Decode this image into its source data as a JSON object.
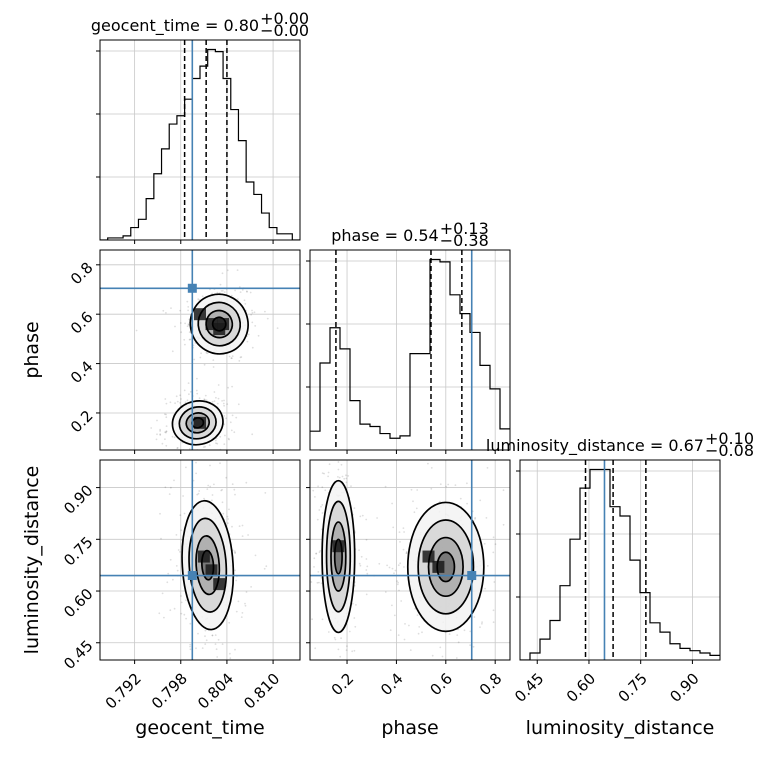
{
  "chart_data": {
    "type": "corner",
    "parameters": [
      "geocent_time",
      "phase",
      "luminosity_distance"
    ],
    "truths": {
      "geocent_time": 0.7995,
      "phase": 0.705,
      "luminosity_distance": 0.645
    },
    "colors": {
      "truth": "#4682b4",
      "contour": "#000000",
      "histogram": "#000000",
      "grid": "#c8c8c8"
    },
    "diagonal": [
      {
        "parameter": "geocent_time",
        "title": "geocent_time = 0.80",
        "title_plus": "+0.00",
        "title_minus": "−0.00",
        "range": [
          0.7875,
          0.8135
        ],
        "quantiles": [
          0.7985,
          0.8013,
          0.804
        ],
        "bin_edges": [
          0.7875,
          0.7885,
          0.7895,
          0.7905,
          0.7915,
          0.7925,
          0.7935,
          0.7945,
          0.7955,
          0.7965,
          0.7975,
          0.7985,
          0.7995,
          0.8005,
          0.8015,
          0.8025,
          0.8035,
          0.8045,
          0.8055,
          0.8065,
          0.8075,
          0.8085,
          0.8095,
          0.8105,
          0.8115,
          0.8125,
          0.8135
        ],
        "counts": [
          0,
          1,
          1,
          2,
          6,
          10,
          20,
          32,
          44,
          56,
          60,
          68,
          78,
          84,
          92,
          91,
          78,
          63,
          48,
          28,
          22,
          13,
          6,
          3,
          3,
          0
        ]
      },
      {
        "parameter": "phase",
        "title": "phase = 0.54",
        "title_plus": "+0.13",
        "title_minus": "−0.38",
        "range": [
          0.05,
          0.86
        ],
        "quantiles": [
          0.155,
          0.54,
          0.665
        ],
        "bin_edges": [
          0.05,
          0.0905,
          0.131,
          0.1715,
          0.212,
          0.2525,
          0.293,
          0.3335,
          0.374,
          0.4145,
          0.455,
          0.4955,
          0.536,
          0.5765,
          0.617,
          0.6575,
          0.698,
          0.7385,
          0.779,
          0.8195,
          0.86
        ],
        "counts": [
          8,
          37,
          52,
          43,
          21,
          11,
          10,
          7,
          5,
          6,
          41,
          41,
          81,
          80,
          66,
          58,
          50,
          36,
          26,
          9
        ]
      },
      {
        "parameter": "luminosity_distance",
        "title": "luminosity_distance = 0.67",
        "title_plus": "+0.10",
        "title_minus": "−0.08",
        "range": [
          0.4,
          0.98
        ],
        "quantiles": [
          0.59,
          0.67,
          0.765
        ],
        "bin_edges": [
          0.4,
          0.429,
          0.458,
          0.487,
          0.516,
          0.545,
          0.574,
          0.603,
          0.632,
          0.661,
          0.69,
          0.719,
          0.748,
          0.777,
          0.806,
          0.835,
          0.864,
          0.893,
          0.922,
          0.951,
          0.98
        ],
        "counts": [
          0,
          3,
          9,
          17,
          32,
          52,
          74,
          82,
          82,
          66,
          62,
          43,
          29,
          16,
          12,
          7,
          5,
          4,
          3,
          2
        ]
      }
    ],
    "contour_panels": [
      {
        "x": "geocent_time",
        "y": "phase",
        "modes": [
          {
            "cx": 0.803,
            "cy": 0.56,
            "sx": 0.0017,
            "sy": 0.055,
            "rot": 0.45,
            "dense": [
              [
                0.802,
                0.56
              ],
              [
                0.8035,
                0.56
              ],
              [
                0.8005,
                0.6
              ],
              [
                0.803,
                0.54
              ]
            ]
          },
          {
            "cx": 0.8002,
            "cy": 0.16,
            "sx": 0.0015,
            "sy": 0.04,
            "rot": 0.35,
            "dense": [
              [
                0.8005,
                0.16
              ]
            ]
          }
        ]
      },
      {
        "x": "geocent_time",
        "y": "luminosity_distance",
        "modes": [
          {
            "cx": 0.8015,
            "cy": 0.675,
            "sx": 0.0015,
            "sy": 0.085,
            "rot": 0.1,
            "dense": [
              [
                0.802,
                0.66
              ],
              [
                0.803,
                0.62
              ],
              [
                0.801,
                0.7
              ]
            ]
          }
        ]
      },
      {
        "x": "phase",
        "y": "luminosity_distance",
        "modes": [
          {
            "cx": 0.165,
            "cy": 0.7,
            "sx": 0.03,
            "sy": 0.1,
            "rot": 0.0,
            "dense": [
              [
                0.165,
                0.73
              ]
            ]
          },
          {
            "cx": 0.6,
            "cy": 0.67,
            "sx": 0.07,
            "sy": 0.085,
            "rot": 0.0,
            "dense": [
              [
                0.57,
                0.67
              ],
              [
                0.53,
                0.7
              ]
            ]
          }
        ]
      }
    ],
    "axes": {
      "geocent_time": {
        "range": [
          0.7875,
          0.8135
        ],
        "ticks": [
          0.792,
          0.798,
          0.804,
          0.81
        ],
        "tick_labels": [
          "0.792",
          "0.798",
          "0.804",
          "0.810"
        ],
        "label": "geocent_time"
      },
      "phase": {
        "range": [
          0.05,
          0.86
        ],
        "ticks": [
          0.2,
          0.4,
          0.6,
          0.8
        ],
        "tick_labels": [
          "0.2",
          "0.4",
          "0.6",
          "0.8"
        ],
        "label": "phase"
      },
      "luminosity_distance": {
        "range": [
          0.4,
          0.98
        ],
        "ticks": [
          0.45,
          0.6,
          0.75,
          0.9
        ],
        "tick_labels": [
          "0.45",
          "0.60",
          "0.75",
          "0.90"
        ],
        "label": "luminosity_distance"
      }
    },
    "grid": true
  }
}
